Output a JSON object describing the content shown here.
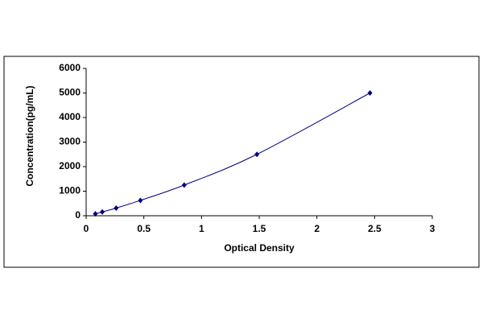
{
  "chart_data": {
    "type": "scatter",
    "x_label": "Optical Density",
    "y_label": "Concentration(pg/mL)",
    "series": [
      {
        "color": "#000080",
        "x": [
          0.08,
          0.14,
          0.26,
          0.47,
          0.85,
          1.48,
          2.46
        ],
        "values": [
          78,
          156,
          312,
          625,
          1250,
          2500,
          5000
        ]
      }
    ],
    "xlim": [
      0,
      3
    ],
    "xticks": [
      0,
      0.5,
      1,
      1.5,
      2,
      2.5,
      3
    ],
    "ylim": [
      0,
      6000
    ],
    "yticks": [
      0,
      1000,
      2000,
      3000,
      4000,
      5000,
      6000
    ],
    "grid": false
  }
}
